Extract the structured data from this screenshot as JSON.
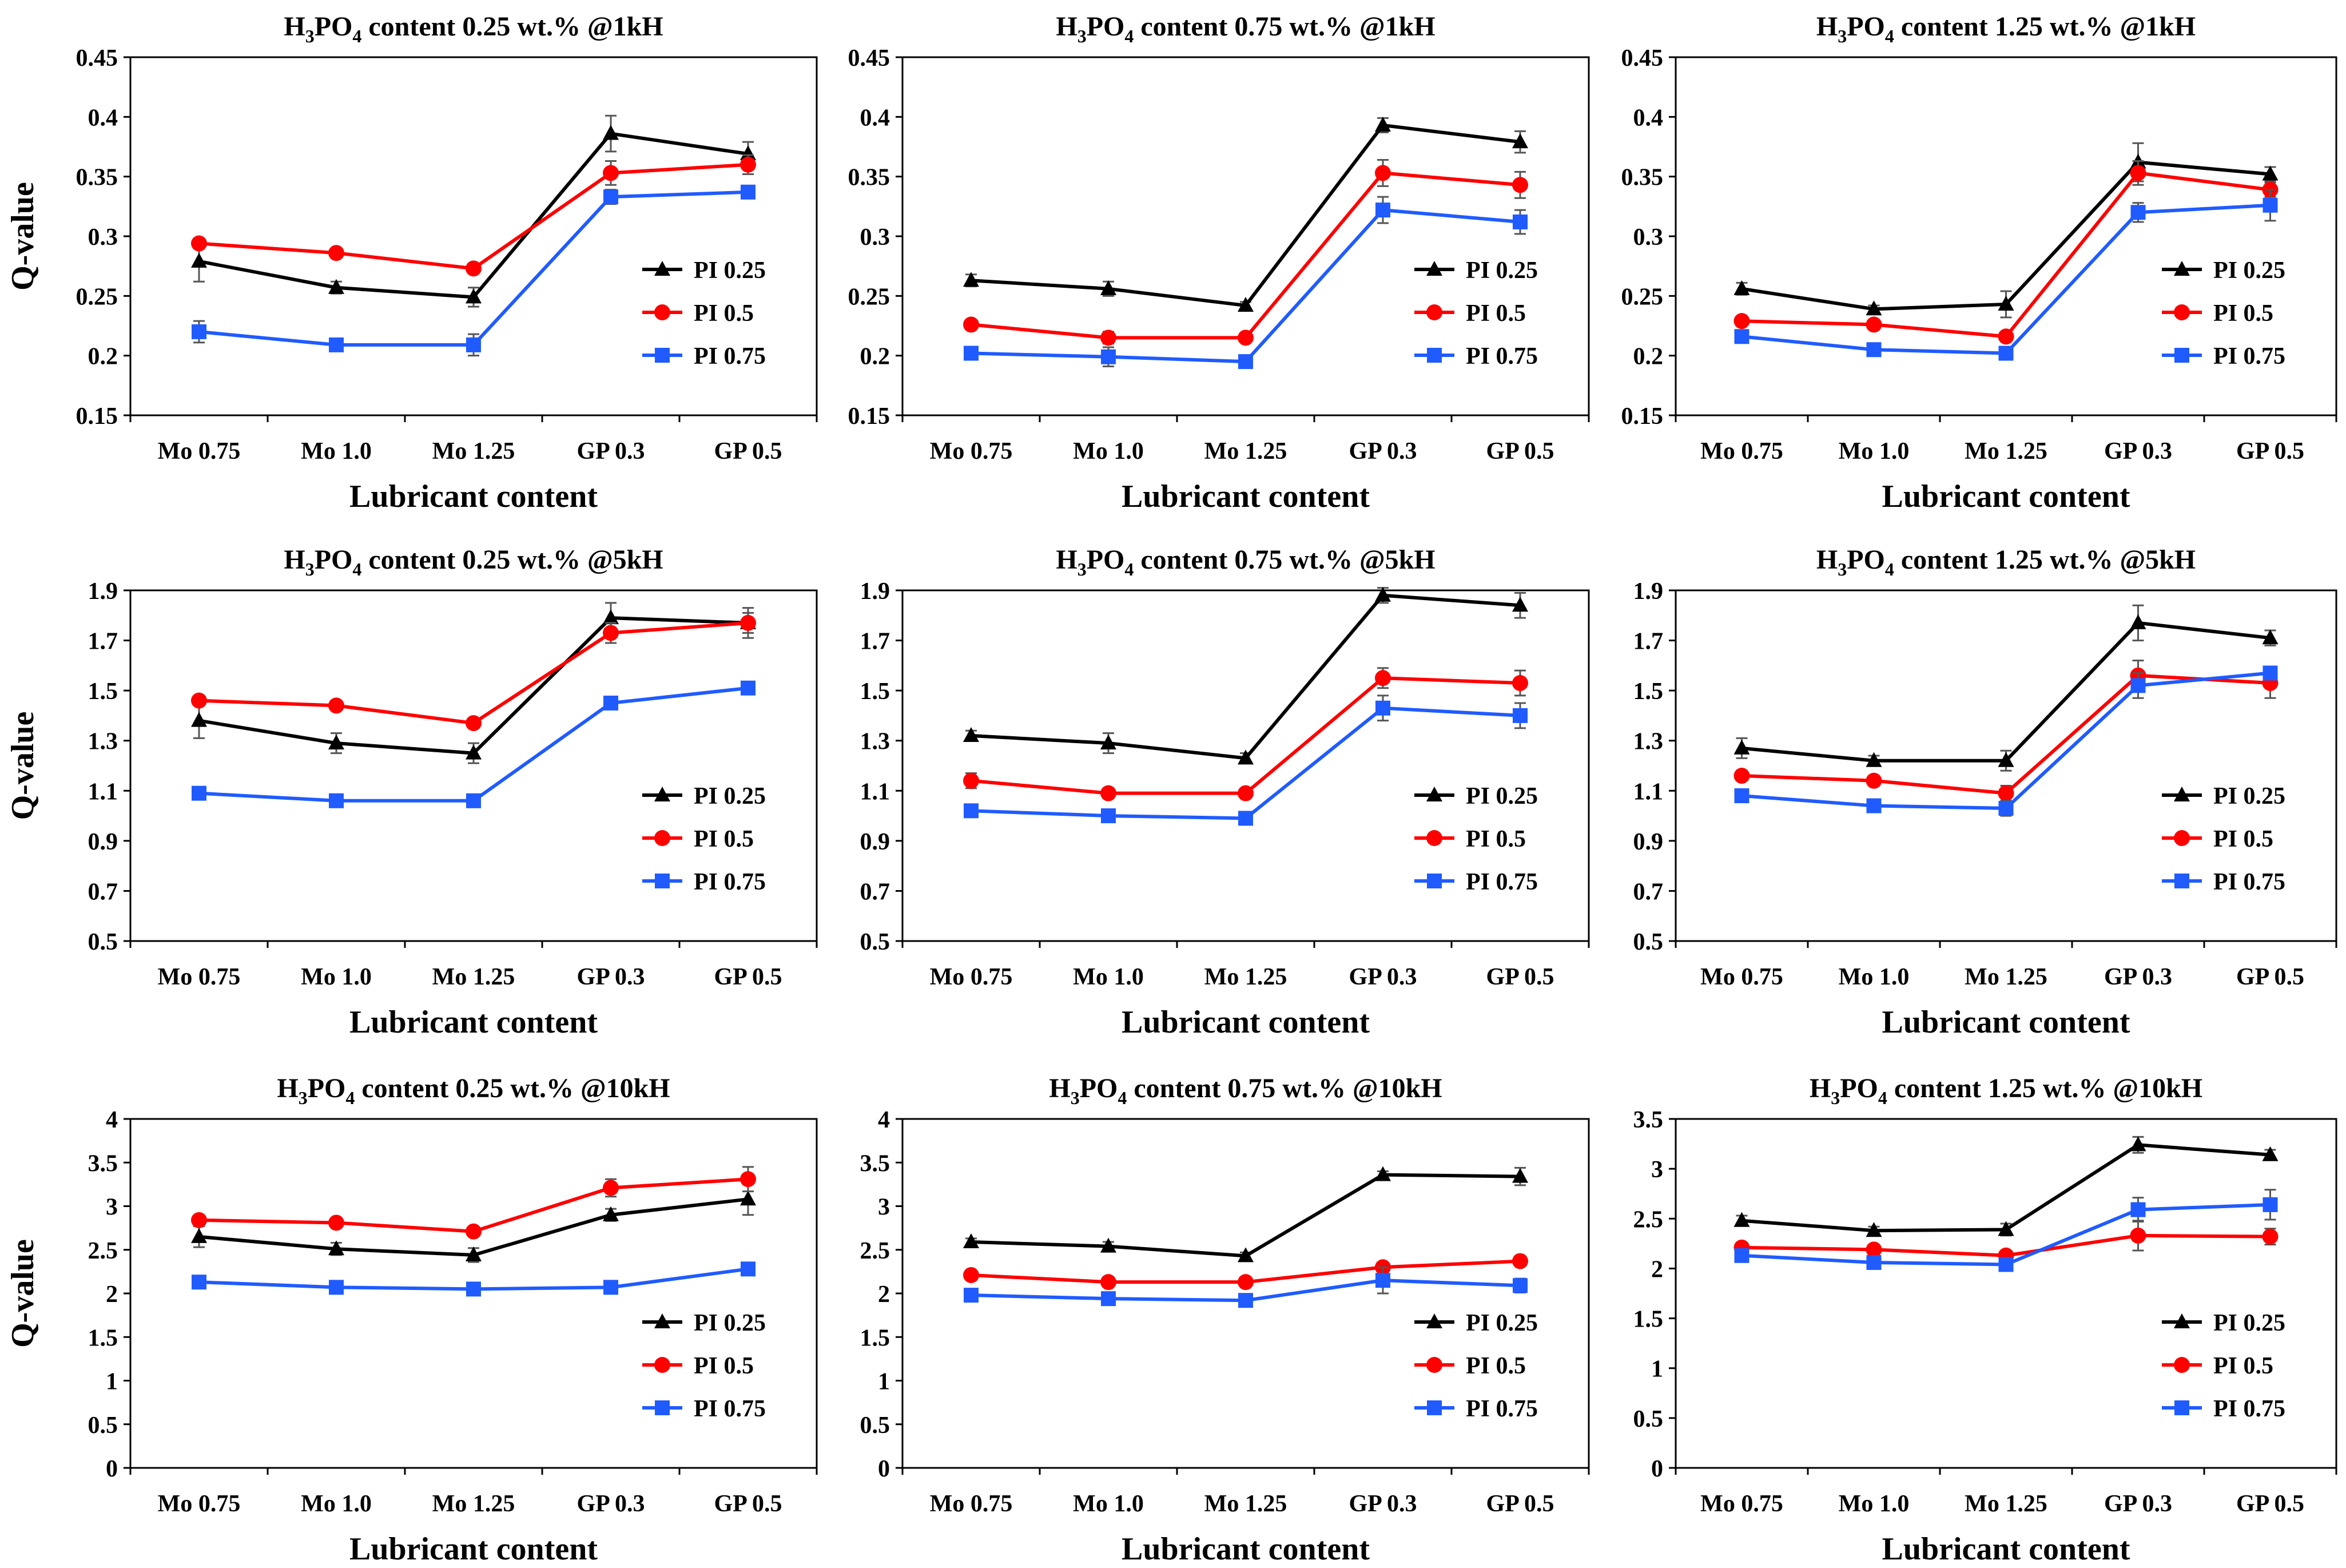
{
  "ylabel": "Q-value",
  "xlabel": "Lubricant content",
  "categories": [
    "Mo 0.75",
    "Mo 1.0",
    "Mo 1.25",
    "GP 0.3",
    "GP 0.5"
  ],
  "legend": [
    {
      "name": "PI 0.25",
      "color": "#000000",
      "marker": "triangle"
    },
    {
      "name": "PI 0.5",
      "color": "#ff0000",
      "marker": "circle"
    },
    {
      "name": "PI 0.75",
      "color": "#1f5bff",
      "marker": "square"
    }
  ],
  "chart_data": [
    {
      "type": "line",
      "title": {
        "pre": "H",
        "s1": "3",
        "mid": "PO",
        "s2": "4",
        "post": " content 0.25 wt.% @1kH"
      },
      "ylim": [
        0.15,
        0.45
      ],
      "yticks": [
        0.15,
        0.2,
        0.25,
        0.3,
        0.35,
        0.4,
        0.45
      ],
      "yticklabels": [
        "0.15",
        "0.2",
        "0.25",
        "0.3",
        "0.35",
        "0.4",
        "0.45"
      ],
      "series": [
        {
          "name": "PI 0.25",
          "values": [
            0.279,
            0.257,
            0.249,
            0.386,
            0.369
          ],
          "err": [
            0.017,
            0.005,
            0.008,
            0.015,
            0.01
          ]
        },
        {
          "name": "PI 0.5",
          "values": [
            0.294,
            0.286,
            0.273,
            0.353,
            0.36
          ],
          "err": [
            0.003,
            0.003,
            0.003,
            0.01,
            0.008
          ]
        },
        {
          "name": "PI 0.75",
          "values": [
            0.22,
            0.209,
            0.209,
            0.333,
            0.337
          ],
          "err": [
            0.009,
            0.004,
            0.009,
            0.006,
            0.003
          ]
        }
      ]
    },
    {
      "type": "line",
      "title": {
        "pre": "H",
        "s1": "3",
        "mid": "PO",
        "s2": "4",
        "post": " content 0.75 wt.% @1kH"
      },
      "ylim": [
        0.15,
        0.45
      ],
      "yticks": [
        0.15,
        0.2,
        0.25,
        0.3,
        0.35,
        0.4,
        0.45
      ],
      "yticklabels": [
        "0.15",
        "0.2",
        "0.25",
        "0.3",
        "0.35",
        "0.4",
        "0.45"
      ],
      "series": [
        {
          "name": "PI 0.25",
          "values": [
            0.263,
            0.256,
            0.242,
            0.393,
            0.379
          ],
          "err": [
            0.005,
            0.006,
            0.003,
            0.006,
            0.009
          ]
        },
        {
          "name": "PI 0.5",
          "values": [
            0.226,
            0.215,
            0.215,
            0.353,
            0.343
          ],
          "err": [
            0.003,
            0.005,
            0.003,
            0.011,
            0.011
          ]
        },
        {
          "name": "PI 0.75",
          "values": [
            0.202,
            0.199,
            0.195,
            0.322,
            0.312
          ],
          "err": [
            0.003,
            0.008,
            0.004,
            0.011,
            0.01
          ]
        }
      ]
    },
    {
      "type": "line",
      "title": {
        "pre": "H",
        "s1": "3",
        "mid": "PO",
        "s2": "4",
        "post": " content 1.25 wt.% @1kH"
      },
      "ylim": [
        0.15,
        0.45
      ],
      "yticks": [
        0.15,
        0.2,
        0.25,
        0.3,
        0.35,
        0.4,
        0.45
      ],
      "yticklabels": [
        "0.15",
        "0.2",
        "0.25",
        "0.3",
        "0.35",
        "0.4",
        "0.45"
      ],
      "series": [
        {
          "name": "PI 0.25",
          "values": [
            0.256,
            0.239,
            0.243,
            0.362,
            0.352
          ],
          "err": [
            0.005,
            0.003,
            0.011,
            0.016,
            0.006
          ]
        },
        {
          "name": "PI 0.5",
          "values": [
            0.229,
            0.226,
            0.216,
            0.353,
            0.339
          ],
          "err": [
            0.003,
            0.003,
            0.003,
            0.01,
            0.006
          ]
        },
        {
          "name": "PI 0.75",
          "values": [
            0.216,
            0.205,
            0.202,
            0.32,
            0.326
          ],
          "err": [
            0.003,
            0.003,
            0.003,
            0.008,
            0.013
          ]
        }
      ]
    },
    {
      "type": "line",
      "title": {
        "pre": "H",
        "s1": "3",
        "mid": "PO",
        "s2": "4",
        "post": " content 0.25 wt.% @5kH"
      },
      "ylim": [
        0.5,
        1.9
      ],
      "yticks": [
        0.5,
        0.7,
        0.9,
        1.1,
        1.3,
        1.5,
        1.7,
        1.9
      ],
      "yticklabels": [
        "0.5",
        "0.7",
        "0.9",
        "1.1",
        "1.3",
        "1.5",
        "1.7",
        "1.9"
      ],
      "series": [
        {
          "name": "PI 0.25",
          "values": [
            1.38,
            1.29,
            1.25,
            1.79,
            1.77
          ],
          "err": [
            0.07,
            0.04,
            0.04,
            0.06,
            0.06
          ]
        },
        {
          "name": "PI 0.5",
          "values": [
            1.46,
            1.44,
            1.37,
            1.73,
            1.77
          ],
          "err": [
            0.01,
            0.01,
            0.01,
            0.04,
            0.04
          ]
        },
        {
          "name": "PI 0.75",
          "values": [
            1.09,
            1.06,
            1.06,
            1.45,
            1.51
          ],
          "err": [
            0.02,
            0.01,
            0.01,
            0.02,
            0.01
          ]
        }
      ]
    },
    {
      "type": "line",
      "title": {
        "pre": "H",
        "s1": "3",
        "mid": "PO",
        "s2": "4",
        "post": " content 0.75 wt.% @5kH"
      },
      "ylim": [
        0.5,
        1.9
      ],
      "yticks": [
        0.5,
        0.7,
        0.9,
        1.1,
        1.3,
        1.5,
        1.7,
        1.9
      ],
      "yticklabels": [
        "0.5",
        "0.7",
        "0.9",
        "1.1",
        "1.3",
        "1.5",
        "1.7",
        "1.9"
      ],
      "series": [
        {
          "name": "PI 0.25",
          "values": [
            1.32,
            1.29,
            1.23,
            1.88,
            1.84
          ],
          "err": [
            0.02,
            0.04,
            0.02,
            0.03,
            0.05
          ]
        },
        {
          "name": "PI 0.5",
          "values": [
            1.14,
            1.09,
            1.09,
            1.55,
            1.53
          ],
          "err": [
            0.03,
            0.02,
            0.02,
            0.04,
            0.05
          ]
        },
        {
          "name": "PI 0.75",
          "values": [
            1.02,
            1.0,
            0.99,
            1.43,
            1.4
          ],
          "err": [
            0.02,
            0.02,
            0.02,
            0.05,
            0.05
          ]
        }
      ]
    },
    {
      "type": "line",
      "title": {
        "pre": "H",
        "s1": "3",
        "mid": "PO",
        "s2": "4",
        "post": " content 1.25 wt.% @5kH"
      },
      "ylim": [
        0.5,
        1.9
      ],
      "yticks": [
        0.5,
        0.7,
        0.9,
        1.1,
        1.3,
        1.5,
        1.7,
        1.9
      ],
      "yticklabels": [
        "0.5",
        "0.7",
        "0.9",
        "1.1",
        "1.3",
        "1.5",
        "1.7",
        "1.9"
      ],
      "series": [
        {
          "name": "PI 0.25",
          "values": [
            1.27,
            1.22,
            1.22,
            1.77,
            1.71
          ],
          "err": [
            0.04,
            0.02,
            0.04,
            0.07,
            0.03
          ]
        },
        {
          "name": "PI 0.5",
          "values": [
            1.16,
            1.14,
            1.09,
            1.56,
            1.53
          ],
          "err": [
            0.02,
            0.02,
            0.03,
            0.06,
            0.06
          ]
        },
        {
          "name": "PI 0.75",
          "values": [
            1.08,
            1.04,
            1.03,
            1.52,
            1.57
          ],
          "err": [
            0.02,
            0.02,
            0.03,
            0.05,
            0.02
          ]
        }
      ]
    },
    {
      "type": "line",
      "title": {
        "pre": "H",
        "s1": "3",
        "mid": "PO",
        "s2": "4",
        "post": " content 0.25 wt.% @10kH"
      },
      "ylim": [
        0,
        4
      ],
      "yticks": [
        0,
        0.5,
        1,
        1.5,
        2,
        2.5,
        3,
        3.5,
        4
      ],
      "yticklabels": [
        "0",
        "0.5",
        "1",
        "1.5",
        "2",
        "2.5",
        "3",
        "3.5",
        "4"
      ],
      "series": [
        {
          "name": "PI 0.25",
          "values": [
            2.65,
            2.51,
            2.44,
            2.9,
            3.08
          ],
          "err": [
            0.12,
            0.07,
            0.08,
            0.07,
            0.18
          ]
        },
        {
          "name": "PI 0.5",
          "values": [
            2.84,
            2.81,
            2.71,
            3.21,
            3.31
          ],
          "err": [
            0.03,
            0.03,
            0.04,
            0.1,
            0.14
          ]
        },
        {
          "name": "PI 0.75",
          "values": [
            2.13,
            2.07,
            2.05,
            2.07,
            2.28
          ],
          "err": [
            0.04,
            0.02,
            0.02,
            0.03,
            0.02
          ]
        }
      ]
    },
    {
      "type": "line",
      "title": {
        "pre": "H",
        "s1": "3",
        "mid": "PO",
        "s2": "4",
        "post": " content 0.75 wt.% @10kH"
      },
      "ylim": [
        0,
        4
      ],
      "yticks": [
        0,
        0.5,
        1,
        1.5,
        2,
        2.5,
        3,
        3.5,
        4
      ],
      "yticklabels": [
        "0",
        "0.5",
        "1",
        "1.5",
        "2",
        "2.5",
        "3",
        "3.5",
        "4"
      ],
      "series": [
        {
          "name": "PI 0.25",
          "values": [
            2.59,
            2.54,
            2.43,
            3.36,
            3.34
          ],
          "err": [
            0.04,
            0.05,
            0.04,
            0.04,
            0.1
          ]
        },
        {
          "name": "PI 0.5",
          "values": [
            2.21,
            2.13,
            2.13,
            2.3,
            2.37
          ],
          "err": [
            0.03,
            0.03,
            0.03,
            0.04,
            0.03
          ]
        },
        {
          "name": "PI 0.75",
          "values": [
            1.98,
            1.94,
            1.92,
            2.15,
            2.09
          ],
          "err": [
            0.03,
            0.03,
            0.03,
            0.15,
            0.08
          ]
        }
      ]
    },
    {
      "type": "line",
      "title": {
        "pre": "H",
        "s1": "3",
        "mid": "PO",
        "s2": "4",
        "post": " content 1.25 wt.% @10kH"
      },
      "ylim": [
        0,
        3.5
      ],
      "yticks": [
        0,
        0.5,
        1,
        1.5,
        2,
        2.5,
        3,
        3.5
      ],
      "yticklabels": [
        "0",
        "0.5",
        "1",
        "1.5",
        "2",
        "2.5",
        "3",
        "3.5"
      ],
      "series": [
        {
          "name": "PI 0.25",
          "values": [
            2.48,
            2.38,
            2.39,
            3.24,
            3.14
          ],
          "err": [
            0.05,
            0.04,
            0.06,
            0.08,
            0.05
          ]
        },
        {
          "name": "PI 0.5",
          "values": [
            2.21,
            2.19,
            2.13,
            2.33,
            2.32
          ],
          "err": [
            0.03,
            0.03,
            0.03,
            0.15,
            0.08
          ]
        },
        {
          "name": "PI 0.75",
          "values": [
            2.13,
            2.06,
            2.04,
            2.59,
            2.64
          ],
          "err": [
            0.03,
            0.03,
            0.06,
            0.12,
            0.15
          ]
        }
      ]
    }
  ]
}
